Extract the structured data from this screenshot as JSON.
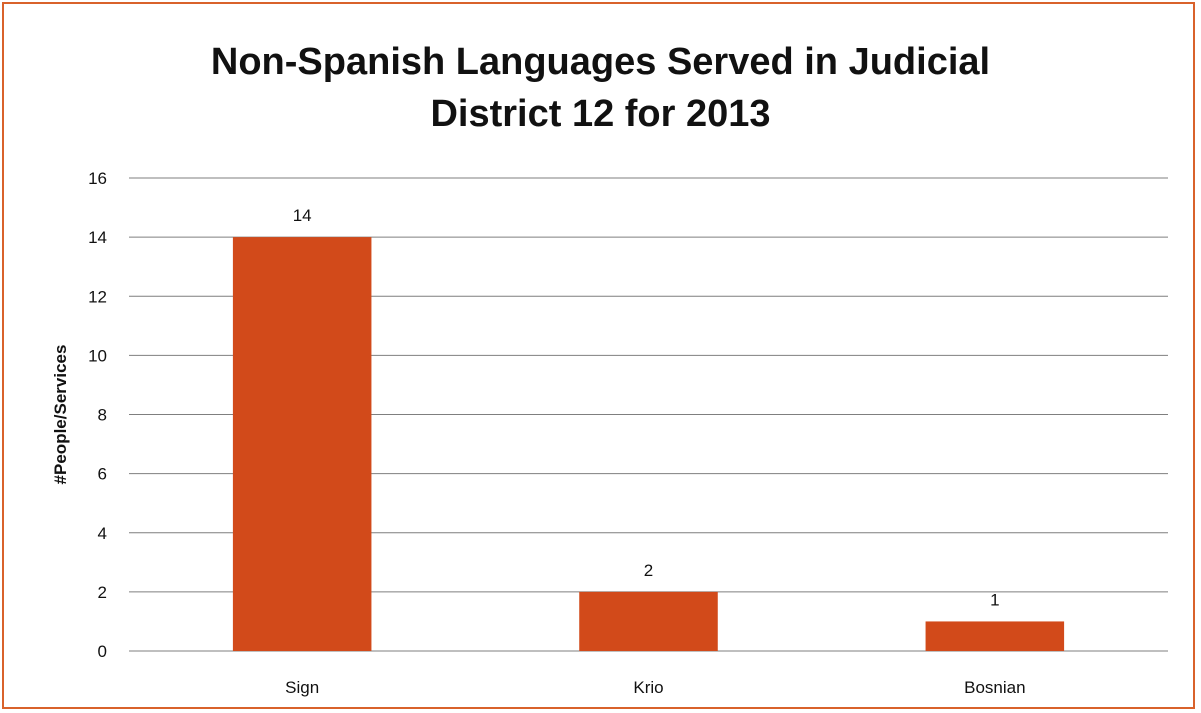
{
  "chart_data": {
    "type": "bar",
    "title": "Non-Spanish Languages Served in Judicial District 12 for 2013",
    "title_lines": [
      "Non-Spanish Languages Served in Judicial",
      "District 12 for 2013"
    ],
    "xlabel": "",
    "ylabel": "#People/Services",
    "categories": [
      "Sign",
      "Krio",
      "Bosnian"
    ],
    "values": [
      14,
      2,
      1
    ],
    "data_labels": [
      "14",
      "2",
      "1"
    ],
    "ylim": [
      0,
      16
    ],
    "yticks": [
      0,
      2,
      4,
      6,
      8,
      10,
      12,
      14,
      16
    ],
    "grid": true,
    "legend": "none",
    "colors": {
      "bar": "#d24a1a",
      "frame_border": "#d9622b",
      "gridline": "#7f7f7f",
      "text": "#111111"
    }
  }
}
